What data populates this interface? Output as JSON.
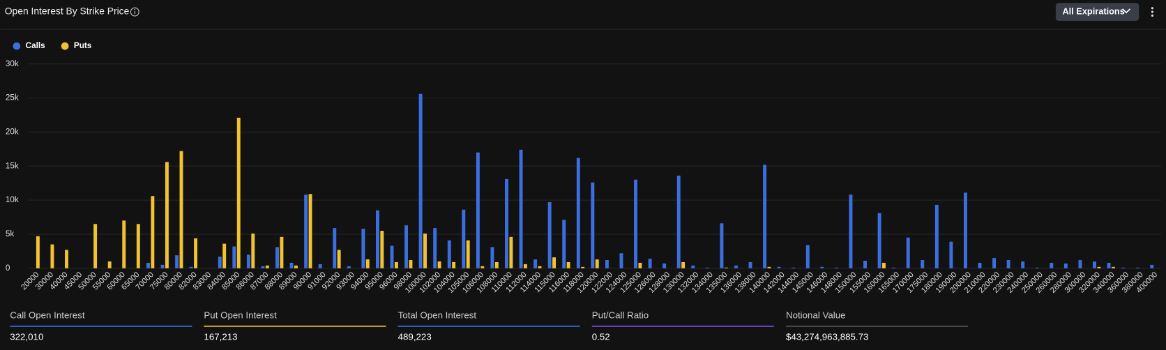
{
  "header": {
    "title": "Open Interest By Strike Price",
    "button": "All Expirations"
  },
  "chart_data": {
    "type": "bar",
    "categories": [
      "20000",
      "30000",
      "40000",
      "45000",
      "50000",
      "55000",
      "60000",
      "65000",
      "70000",
      "75000",
      "80000",
      "82000",
      "83000",
      "84000",
      "85000",
      "86000",
      "87000",
      "88000",
      "89000",
      "90000",
      "91000",
      "92000",
      "93000",
      "94000",
      "95000",
      "96000",
      "98000",
      "100000",
      "102000",
      "104000",
      "105000",
      "106000",
      "108000",
      "110000",
      "112000",
      "114000",
      "115000",
      "116000",
      "118000",
      "120000",
      "122000",
      "124000",
      "125000",
      "126000",
      "128000",
      "130000",
      "132000",
      "134000",
      "135000",
      "136000",
      "138000",
      "140000",
      "142000",
      "144000",
      "145000",
      "146000",
      "148000",
      "150000",
      "155000",
      "160000",
      "165000",
      "170000",
      "175000",
      "180000",
      "190000",
      "200000",
      "210000",
      "220000",
      "230000",
      "240000",
      "250000",
      "260000",
      "280000",
      "300000",
      "320000",
      "340000",
      "360000",
      "380000",
      "400000"
    ],
    "series": [
      {
        "name": "Calls",
        "color": "#3b6fe0",
        "values": [
          0,
          0,
          0,
          0,
          0,
          0,
          0,
          0,
          800,
          500,
          1900,
          200,
          0,
          1700,
          3200,
          2000,
          300,
          3100,
          800,
          10800,
          600,
          5900,
          300,
          5800,
          8500,
          3300,
          6300,
          25600,
          5900,
          4100,
          8600,
          17000,
          3100,
          13100,
          17400,
          1300,
          9700,
          7100,
          16200,
          12600,
          1200,
          2200,
          13000,
          1400,
          700,
          13600,
          400,
          100,
          6600,
          400,
          900,
          15200,
          200,
          100,
          3400,
          200,
          100,
          10800,
          1100,
          8100,
          100,
          4500,
          1200,
          9300,
          3900,
          11100,
          800,
          1500,
          1200,
          1000,
          100,
          800,
          700,
          1200,
          1000,
          800,
          100,
          100,
          500
        ]
      },
      {
        "name": "Puts",
        "color": "#f2c230",
        "values": [
          4700,
          3500,
          2700,
          0,
          6500,
          1000,
          7000,
          6500,
          10600,
          15600,
          17200,
          4400,
          0,
          3600,
          22100,
          5100,
          400,
          4600,
          400,
          10900,
          0,
          2700,
          0,
          1300,
          5500,
          900,
          1200,
          5100,
          1000,
          900,
          4100,
          300,
          900,
          4600,
          600,
          300,
          1600,
          900,
          200,
          1300,
          0,
          0,
          800,
          0,
          0,
          900,
          0,
          0,
          100,
          0,
          0,
          200,
          0,
          0,
          0,
          0,
          0,
          0,
          0,
          800,
          0,
          0,
          0,
          0,
          0,
          0,
          0,
          0,
          0,
          0,
          0,
          0,
          0,
          0,
          200,
          200,
          0,
          0,
          0
        ]
      }
    ],
    "ylim": [
      0,
      30000
    ],
    "yticks": [
      {
        "value": 0,
        "label": "0"
      },
      {
        "value": 5000,
        "label": "5k"
      },
      {
        "value": 10000,
        "label": "10k"
      },
      {
        "value": 15000,
        "label": "15k"
      },
      {
        "value": 20000,
        "label": "20k"
      },
      {
        "value": 25000,
        "label": "25k"
      },
      {
        "value": 30000,
        "label": "30k"
      }
    ],
    "grid": true,
    "legend": "top-left"
  },
  "stats": [
    {
      "label": "Call Open Interest",
      "value": "322,010"
    },
    {
      "label": "Put Open Interest",
      "value": "167,213"
    },
    {
      "label": "Total Open Interest",
      "value": "489,223"
    },
    {
      "label": "Put/Call Ratio",
      "value": "0.52"
    },
    {
      "label": "Notional Value",
      "value": "$43,274,963,885.73"
    }
  ]
}
